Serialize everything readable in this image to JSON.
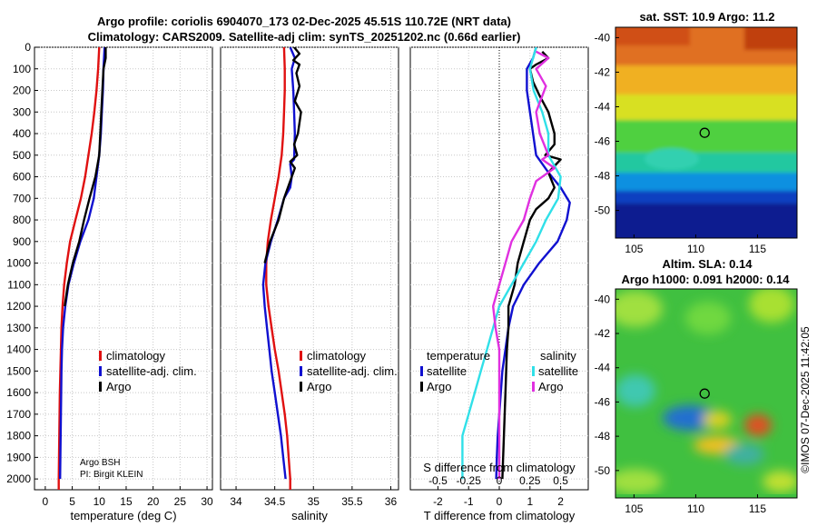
{
  "title": {
    "line1": "Argo profile: coriolis 6904070_173 02-Dec-2025 45.51S 110.72E (NRT data)",
    "line2": "Climatology: CARS2009. Satellite-adj clim: synTS_20251202.nc (0.66d earlier)"
  },
  "credit": {
    "institution": "Argo BSH",
    "pi": "PI: Birgit KLEIN"
  },
  "stamp": "©IMOS 07-Dec-2025 11:42:05",
  "colors": {
    "climatology": "#e01010",
    "satellite": "#1010d0",
    "argo": "#000000",
    "sat_salinity": "#30e0e8",
    "argo_salinity": "#e030e0"
  },
  "chart_data": [
    {
      "id": "temperature",
      "type": "line",
      "xlabel": "temperature (deg C)",
      "xlim": [
        -2,
        31
      ],
      "xticks": [
        0,
        5,
        10,
        15,
        20,
        25,
        30
      ],
      "ylim": [
        0,
        2050
      ],
      "yticks": [
        0,
        100,
        200,
        300,
        400,
        500,
        600,
        700,
        800,
        900,
        1000,
        1100,
        1200,
        1300,
        1400,
        1500,
        1600,
        1700,
        1800,
        1900,
        2000
      ],
      "legend": [
        "climatology",
        "satellite-adj. clim.",
        "Argo"
      ],
      "series": [
        {
          "name": "climatology",
          "color": "#e01010",
          "points": [
            [
              10.0,
              0
            ],
            [
              9.8,
              100
            ],
            [
              9.5,
              200
            ],
            [
              9.1,
              300
            ],
            [
              8.6,
              400
            ],
            [
              8.0,
              500
            ],
            [
              7.4,
              600
            ],
            [
              6.6,
              700
            ],
            [
              5.6,
              800
            ],
            [
              4.6,
              900
            ],
            [
              4.0,
              1000
            ],
            [
              3.5,
              1100
            ],
            [
              3.2,
              1200
            ],
            [
              3.0,
              1300
            ],
            [
              2.9,
              1400
            ],
            [
              2.8,
              1500
            ],
            [
              2.7,
              1600
            ],
            [
              2.65,
              1700
            ],
            [
              2.6,
              1800
            ],
            [
              2.55,
              1900
            ],
            [
              2.5,
              2000
            ],
            [
              2.5,
              2050
            ]
          ]
        },
        {
          "name": "satellite-adj. clim.",
          "color": "#1010d0",
          "points": [
            [
              11.0,
              0
            ],
            [
              10.8,
              100
            ],
            [
              10.7,
              200
            ],
            [
              10.5,
              300
            ],
            [
              10.3,
              400
            ],
            [
              10.0,
              500
            ],
            [
              9.5,
              600
            ],
            [
              9.0,
              700
            ],
            [
              8.0,
              800
            ],
            [
              6.5,
              900
            ],
            [
              5.3,
              1000
            ],
            [
              4.3,
              1100
            ],
            [
              3.7,
              1200
            ],
            [
              3.3,
              1300
            ],
            [
              3.1,
              1400
            ],
            [
              3.0,
              1500
            ],
            [
              2.95,
              1600
            ],
            [
              2.9,
              1700
            ],
            [
              2.85,
              1800
            ],
            [
              2.8,
              1900
            ],
            [
              2.75,
              2000
            ]
          ]
        },
        {
          "name": "Argo",
          "color": "#000000",
          "points": [
            [
              11.2,
              0
            ],
            [
              11.2,
              50
            ],
            [
              10.8,
              100
            ],
            [
              10.6,
              200
            ],
            [
              10.4,
              300
            ],
            [
              10.2,
              400
            ],
            [
              10.0,
              500
            ],
            [
              9.3,
              600
            ],
            [
              8.2,
              700
            ],
            [
              7.2,
              800
            ],
            [
              6.3,
              900
            ],
            [
              5.1,
              1000
            ],
            [
              4.2,
              1100
            ],
            [
              3.6,
              1200
            ]
          ]
        }
      ]
    },
    {
      "id": "salinity",
      "type": "line",
      "xlabel": "salinity",
      "xlim": [
        33.8,
        36.1
      ],
      "xticks": [
        34,
        34.5,
        35,
        35.5,
        36
      ],
      "ylim": [
        0,
        2050
      ],
      "legend": [
        "climatology",
        "satellite-adj. clim.",
        "Argo"
      ],
      "series": [
        {
          "name": "climatology",
          "color": "#e01010",
          "points": [
            [
              34.62,
              0
            ],
            [
              34.63,
              100
            ],
            [
              34.63,
              200
            ],
            [
              34.62,
              300
            ],
            [
              34.61,
              400
            ],
            [
              34.59,
              500
            ],
            [
              34.55,
              600
            ],
            [
              34.5,
              700
            ],
            [
              34.45,
              800
            ],
            [
              34.41,
              900
            ],
            [
              34.39,
              1000
            ],
            [
              34.39,
              1100
            ],
            [
              34.42,
              1200
            ],
            [
              34.46,
              1300
            ],
            [
              34.5,
              1400
            ],
            [
              34.55,
              1500
            ],
            [
              34.59,
              1600
            ],
            [
              34.63,
              1700
            ],
            [
              34.66,
              1800
            ],
            [
              34.68,
              1900
            ],
            [
              34.7,
              2000
            ],
            [
              34.7,
              2050
            ]
          ]
        },
        {
          "name": "satellite-adj. clim.",
          "color": "#1010d0",
          "points": [
            [
              34.7,
              0
            ],
            [
              34.76,
              50
            ],
            [
              34.72,
              100
            ],
            [
              34.74,
              200
            ],
            [
              34.75,
              300
            ],
            [
              34.76,
              400
            ],
            [
              34.75,
              520
            ],
            [
              34.7,
              540
            ],
            [
              34.72,
              600
            ],
            [
              34.7,
              650
            ],
            [
              34.62,
              700
            ],
            [
              34.54,
              800
            ],
            [
              34.45,
              900
            ],
            [
              34.38,
              1000
            ],
            [
              34.35,
              1100
            ],
            [
              34.37,
              1200
            ],
            [
              34.4,
              1300
            ],
            [
              34.43,
              1400
            ],
            [
              34.46,
              1500
            ],
            [
              34.5,
              1600
            ],
            [
              34.54,
              1700
            ],
            [
              34.58,
              1800
            ],
            [
              34.61,
              1900
            ],
            [
              34.64,
              2000
            ]
          ]
        },
        {
          "name": "Argo",
          "color": "#000000",
          "points": [
            [
              34.75,
              0
            ],
            [
              34.82,
              30
            ],
            [
              34.74,
              60
            ],
            [
              34.82,
              80
            ],
            [
              34.78,
              120
            ],
            [
              34.82,
              180
            ],
            [
              34.76,
              250
            ],
            [
              34.84,
              300
            ],
            [
              34.8,
              400
            ],
            [
              34.75,
              450
            ],
            [
              34.79,
              500
            ],
            [
              34.7,
              530
            ],
            [
              34.76,
              560
            ],
            [
              34.7,
              620
            ],
            [
              34.62,
              700
            ],
            [
              34.55,
              800
            ],
            [
              34.44,
              900
            ],
            [
              34.37,
              1000
            ]
          ]
        }
      ]
    },
    {
      "id": "difference",
      "type": "line",
      "xlabel": "T difference from climatology",
      "xlabel2": "S difference from climatology",
      "xlim": [
        -2.9,
        2.9
      ],
      "xticks": [
        -2,
        -1,
        0,
        1,
        2
      ],
      "sticks": [
        -0.5,
        -0.25,
        0,
        0.25,
        0.5
      ],
      "ylim": [
        0,
        2050
      ],
      "legend": {
        "temperature_header": "temperature",
        "salinity_header": "salinity",
        "temperature": [
          "satellite",
          "Argo"
        ],
        "salinity": [
          "satellite",
          "Argo"
        ]
      },
      "series": [
        {
          "name": "T satellite",
          "color": "#1010d0",
          "points": [
            [
              1.2,
              0
            ],
            [
              1.1,
              50
            ],
            [
              0.9,
              100
            ],
            [
              0.9,
              200
            ],
            [
              1.0,
              300
            ],
            [
              1.1,
              400
            ],
            [
              1.2,
              500
            ],
            [
              1.6,
              580
            ],
            [
              2.0,
              650
            ],
            [
              2.3,
              720
            ],
            [
              2.2,
              800
            ],
            [
              1.9,
              900
            ],
            [
              1.3,
              1000
            ],
            [
              0.8,
              1100
            ],
            [
              0.45,
              1200
            ],
            [
              0.3,
              1300
            ],
            [
              0.2,
              1400
            ],
            [
              0.1,
              1500
            ],
            [
              0.05,
              1600
            ],
            [
              0.0,
              1700
            ],
            [
              -0.05,
              1800
            ],
            [
              -0.08,
              1900
            ],
            [
              -0.1,
              2000
            ]
          ]
        },
        {
          "name": "T Argo",
          "color": "#000000",
          "points": [
            [
              1.4,
              20
            ],
            [
              1.6,
              50
            ],
            [
              1.2,
              80
            ],
            [
              1.0,
              100
            ],
            [
              1.1,
              160
            ],
            [
              1.3,
              220
            ],
            [
              1.6,
              300
            ],
            [
              1.8,
              400
            ],
            [
              1.8,
              450
            ],
            [
              1.5,
              500
            ],
            [
              2.0,
              520
            ],
            [
              1.6,
              580
            ],
            [
              1.8,
              650
            ],
            [
              1.6,
              700
            ],
            [
              1.2,
              750
            ],
            [
              1.0,
              800
            ],
            [
              0.8,
              900
            ],
            [
              0.6,
              1000
            ],
            [
              0.5,
              1100
            ],
            [
              0.3,
              1200
            ],
            [
              0.3,
              1300
            ],
            [
              0.25,
              1400
            ],
            [
              0.2,
              1600
            ],
            [
              0.15,
              1800
            ],
            [
              0.1,
              2000
            ]
          ]
        },
        {
          "name": "S satellite",
          "color": "#30e0e8",
          "points": [
            [
              0.3,
              0
            ],
            [
              0.25,
              100
            ],
            [
              0.28,
              200
            ],
            [
              0.35,
              300
            ],
            [
              0.4,
              400
            ],
            [
              0.4,
              500
            ],
            [
              0.5,
              600
            ],
            [
              0.48,
              700
            ],
            [
              0.38,
              800
            ],
            [
              0.3,
              900
            ],
            [
              0.2,
              1000
            ],
            [
              0.1,
              1100
            ],
            [
              0.0,
              1200
            ],
            [
              -0.05,
              1300
            ],
            [
              -0.1,
              1400
            ],
            [
              -0.15,
              1500
            ],
            [
              -0.2,
              1600
            ],
            [
              -0.25,
              1700
            ],
            [
              -0.3,
              1800
            ],
            [
              -0.3,
              1900
            ],
            [
              -0.3,
              2000
            ]
          ]
        },
        {
          "name": "S Argo",
          "color": "#e030e0",
          "points": [
            [
              0.3,
              20
            ],
            [
              0.4,
              50
            ],
            [
              0.3,
              100
            ],
            [
              0.38,
              180
            ],
            [
              0.3,
              300
            ],
            [
              0.33,
              400
            ],
            [
              0.4,
              500
            ],
            [
              0.35,
              520
            ],
            [
              0.45,
              560
            ],
            [
              0.3,
              620
            ],
            [
              0.25,
              700
            ],
            [
              0.2,
              800
            ],
            [
              0.1,
              900
            ],
            [
              0.05,
              1000
            ],
            [
              0.0,
              1100
            ],
            [
              -0.05,
              1200
            ],
            [
              -0.03,
              1300
            ],
            [
              0.0,
              1400
            ],
            [
              0.0,
              1500
            ],
            [
              0.0,
              1600
            ],
            [
              0.0,
              1700
            ],
            [
              0.0,
              1800
            ],
            [
              0.0,
              1900
            ],
            [
              0.0,
              2000
            ]
          ]
        }
      ]
    },
    {
      "id": "sst_map",
      "type": "heatmap",
      "title": "sat. SST: 10.9 Argo: 11.2",
      "xlim": [
        103.5,
        118.2
      ],
      "ylim": [
        -51.6,
        -39.4
      ],
      "xticks": [
        105,
        110,
        115
      ],
      "yticks": [
        -40,
        -42,
        -44,
        -46,
        -48,
        -50
      ],
      "marker": {
        "lon": 110.72,
        "lat": -45.51
      }
    },
    {
      "id": "sla_map",
      "type": "heatmap",
      "title": "Altim. SLA: 0.14",
      "title2": "Argo h1000: 0.091 h2000: 0.14",
      "xlim": [
        103.5,
        118.2
      ],
      "ylim": [
        -51.6,
        -39.4
      ],
      "xticks": [
        105,
        110,
        115
      ],
      "yticks": [
        -40,
        -42,
        -44,
        -46,
        -48,
        -50
      ],
      "marker": {
        "lon": 110.72,
        "lat": -45.51
      }
    }
  ]
}
